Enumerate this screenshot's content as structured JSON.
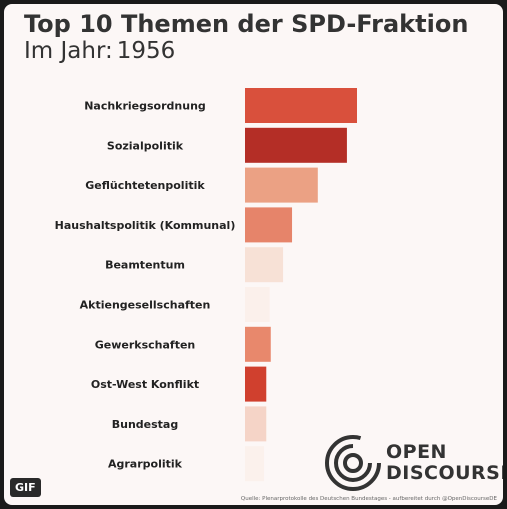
{
  "header": {
    "title": "Top 10 Themen der SPD-Fraktion",
    "subtitle_prefix": "Im Jahr:",
    "year": "1956"
  },
  "branding": {
    "logo_line1": "OPEN",
    "logo_line2": "DISCOURSE",
    "source": "Quelle: Plenarprotokolle des Deutschen Bundestages - aufbereitet durch @OpenDiscourseDE"
  },
  "badge": {
    "label": "GIF"
  },
  "chart_data": {
    "type": "bar",
    "orientation": "horizontal",
    "title": "Top 10 Themen der SPD-Fraktion",
    "subtitle": "Im Jahr: 1956",
    "categories": [
      "Nachkriegsordnung",
      "Sozialpolitik",
      "Geflüchtetenpolitik",
      "Haushaltspolitik (Kommunal)",
      "Beamtentum",
      "Aktiengesellschaften",
      "Gewerkschaften",
      "Ost-West Konflikt",
      "Bundestag",
      "Agrarpolitik"
    ],
    "values": [
      100,
      91,
      65,
      42,
      34,
      22,
      23,
      19,
      19,
      17
    ],
    "colors": [
      "#d9503c",
      "#b42e26",
      "#eba184",
      "#e6846a",
      "#f7e1d6",
      "#fbf0eb",
      "#e8886c",
      "#d0402e",
      "#f5d4c7",
      "#fbf1ec"
    ],
    "xlim": [
      0,
      100
    ],
    "grid": false,
    "legend": "none"
  }
}
